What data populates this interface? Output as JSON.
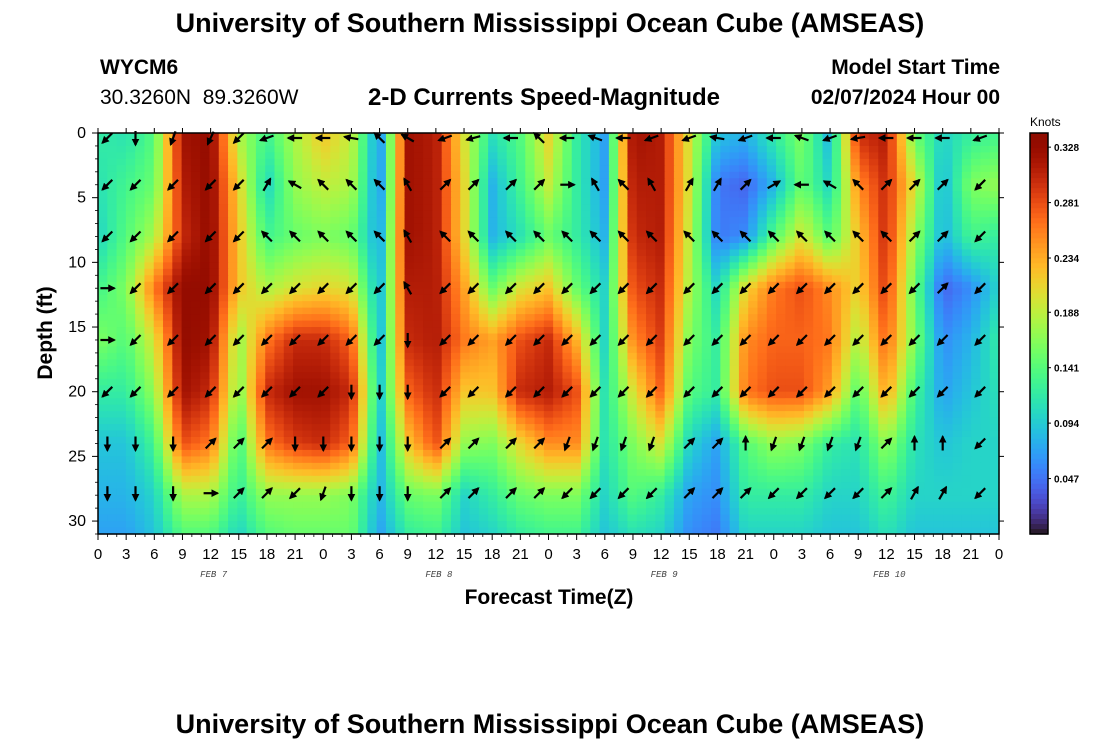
{
  "header": {
    "title": "University of Southern Mississippi Ocean Cube (AMSEAS)",
    "station_id": "WYCM6",
    "station_coords": "30.3260N  89.3260W",
    "product": "2-D Currents Speed-Magnitude",
    "model_start_label": "Model Start Time",
    "model_start_value": "02/07/2024 Hour 00"
  },
  "footer": {
    "title": "University of Southern Mississippi Ocean Cube (AMSEAS)"
  },
  "chart_data": {
    "type": "heatmap",
    "title": "2-D Currents Speed-Magnitude",
    "xlabel": "Forecast Time(Z)",
    "ylabel": "Depth (ft)",
    "xlim": [
      0,
      96
    ],
    "ylim": [
      31,
      0
    ],
    "x_ticks": [
      0,
      3,
      6,
      9,
      12,
      15,
      18,
      21,
      24,
      27,
      30,
      33,
      36,
      39,
      42,
      45,
      48,
      51,
      54,
      57,
      60,
      63,
      66,
      69,
      72,
      75,
      78,
      81,
      84,
      87,
      90,
      93,
      96
    ],
    "x_tick_labels": [
      "0",
      "3",
      "6",
      "9",
      "12",
      "15",
      "18",
      "21",
      "0",
      "3",
      "6",
      "9",
      "12",
      "15",
      "18",
      "21",
      "0",
      "3",
      "6",
      "9",
      "12",
      "15",
      "18",
      "21",
      "0",
      "3",
      "6",
      "9",
      "12",
      "15",
      "18",
      "21",
      "0"
    ],
    "y_ticks": [
      0,
      5,
      10,
      15,
      20,
      25,
      30
    ],
    "day_labels": [
      {
        "text": "FEB 7",
        "hour": 12
      },
      {
        "text": "FEB 8",
        "hour": 36
      },
      {
        "text": "FEB 9",
        "hour": 60
      },
      {
        "text": "FEB 10",
        "hour": 84
      }
    ],
    "colorbar": {
      "unit": "Knots",
      "min": 0.0,
      "max": 0.34,
      "ticks": [
        0.328,
        0.281,
        0.234,
        0.188,
        0.141,
        0.094,
        0.047
      ],
      "tick_labels": [
        "0.328",
        "0.281",
        "0.234",
        "0.188",
        "0.141",
        "0.094",
        "0.047"
      ]
    },
    "speed_grid": {
      "hours": [
        0,
        3,
        6,
        9,
        12,
        15,
        18,
        21,
        24,
        27,
        30,
        33,
        36,
        39,
        42,
        45,
        48,
        51,
        54,
        57,
        60,
        63,
        66,
        69,
        72,
        75,
        78,
        81,
        84,
        87,
        90,
        93,
        96
      ],
      "depths": [
        0,
        4,
        8,
        12,
        16,
        20,
        24,
        28,
        31
      ],
      "values": [
        [
          0.12,
          0.11,
          0.14,
          0.32,
          0.33,
          0.18,
          0.13,
          0.18,
          0.22,
          0.19,
          0.06,
          0.32,
          0.31,
          0.2,
          0.11,
          0.14,
          0.21,
          0.12,
          0.07,
          0.32,
          0.31,
          0.2,
          0.09,
          0.08,
          0.12,
          0.16,
          0.08,
          0.3,
          0.31,
          0.15,
          0.1,
          0.12,
          0.13
        ],
        [
          0.11,
          0.13,
          0.15,
          0.31,
          0.33,
          0.21,
          0.1,
          0.17,
          0.19,
          0.18,
          0.06,
          0.32,
          0.31,
          0.21,
          0.08,
          0.13,
          0.19,
          0.12,
          0.07,
          0.31,
          0.31,
          0.2,
          0.05,
          0.04,
          0.08,
          0.15,
          0.1,
          0.25,
          0.3,
          0.2,
          0.08,
          0.16,
          0.17
        ],
        [
          0.1,
          0.14,
          0.18,
          0.3,
          0.33,
          0.22,
          0.13,
          0.15,
          0.16,
          0.15,
          0.07,
          0.32,
          0.31,
          0.21,
          0.08,
          0.11,
          0.15,
          0.12,
          0.08,
          0.3,
          0.31,
          0.19,
          0.05,
          0.06,
          0.14,
          0.2,
          0.14,
          0.22,
          0.3,
          0.17,
          0.08,
          0.13,
          0.12
        ],
        [
          0.13,
          0.16,
          0.26,
          0.33,
          0.33,
          0.22,
          0.18,
          0.2,
          0.21,
          0.2,
          0.08,
          0.31,
          0.31,
          0.24,
          0.15,
          0.2,
          0.22,
          0.15,
          0.1,
          0.28,
          0.3,
          0.18,
          0.1,
          0.21,
          0.26,
          0.28,
          0.25,
          0.21,
          0.29,
          0.15,
          0.04,
          0.06,
          0.1
        ],
        [
          0.16,
          0.14,
          0.2,
          0.33,
          0.32,
          0.17,
          0.26,
          0.3,
          0.3,
          0.27,
          0.08,
          0.3,
          0.31,
          0.26,
          0.24,
          0.28,
          0.3,
          0.23,
          0.1,
          0.25,
          0.29,
          0.16,
          0.12,
          0.25,
          0.27,
          0.27,
          0.26,
          0.18,
          0.27,
          0.16,
          0.06,
          0.08,
          0.12
        ],
        [
          0.12,
          0.12,
          0.17,
          0.32,
          0.3,
          0.16,
          0.3,
          0.32,
          0.32,
          0.3,
          0.09,
          0.27,
          0.3,
          0.22,
          0.22,
          0.3,
          0.31,
          0.28,
          0.11,
          0.2,
          0.27,
          0.14,
          0.12,
          0.26,
          0.28,
          0.28,
          0.24,
          0.14,
          0.24,
          0.13,
          0.07,
          0.09,
          0.11
        ],
        [
          0.09,
          0.09,
          0.13,
          0.28,
          0.26,
          0.13,
          0.26,
          0.29,
          0.3,
          0.27,
          0.08,
          0.22,
          0.28,
          0.17,
          0.16,
          0.21,
          0.25,
          0.25,
          0.11,
          0.16,
          0.2,
          0.1,
          0.07,
          0.14,
          0.17,
          0.16,
          0.12,
          0.11,
          0.17,
          0.11,
          0.09,
          0.1,
          0.1
        ],
        [
          0.08,
          0.08,
          0.1,
          0.18,
          0.18,
          0.12,
          0.17,
          0.17,
          0.17,
          0.16,
          0.08,
          0.15,
          0.16,
          0.1,
          0.12,
          0.15,
          0.16,
          0.16,
          0.1,
          0.14,
          0.12,
          0.07,
          0.06,
          0.12,
          0.12,
          0.12,
          0.1,
          0.1,
          0.13,
          0.1,
          0.1,
          0.1,
          0.1
        ],
        [
          0.07,
          0.07,
          0.09,
          0.14,
          0.14,
          0.1,
          0.14,
          0.15,
          0.15,
          0.15,
          0.07,
          0.12,
          0.13,
          0.09,
          0.1,
          0.12,
          0.13,
          0.13,
          0.09,
          0.11,
          0.1,
          0.06,
          0.05,
          0.1,
          0.1,
          0.1,
          0.09,
          0.09,
          0.11,
          0.09,
          0.09,
          0.09,
          0.09
        ]
      ]
    },
    "arrows": {
      "hours": [
        1,
        4,
        8,
        12,
        15,
        18,
        21,
        24,
        27,
        30,
        33,
        37,
        40,
        44,
        47,
        50,
        53,
        56,
        59,
        63,
        66,
        69,
        72,
        75,
        78,
        81,
        84,
        87,
        90,
        94
      ],
      "depths": [
        0,
        4,
        8,
        12,
        16,
        20,
        24,
        28
      ],
      "directions_deg": [
        [
          225,
          180,
          200,
          205,
          225,
          250,
          270,
          270,
          280,
          315,
          300,
          250,
          255,
          270,
          315,
          270,
          290,
          270,
          250,
          250,
          280,
          250,
          270,
          290,
          250,
          260,
          270,
          270,
          270,
          250
        ],
        [
          225,
          225,
          225,
          225,
          225,
          30,
          300,
          315,
          315,
          315,
          330,
          45,
          45,
          45,
          45,
          90,
          330,
          315,
          330,
          30,
          30,
          45,
          60,
          270,
          300,
          315,
          45,
          45,
          45,
          225
        ],
        [
          225,
          225,
          225,
          225,
          225,
          315,
          315,
          315,
          315,
          315,
          330,
          315,
          315,
          315,
          315,
          315,
          315,
          315,
          315,
          315,
          315,
          315,
          315,
          315,
          315,
          315,
          315,
          45,
          45,
          225
        ],
        [
          90,
          225,
          225,
          225,
          225,
          225,
          225,
          225,
          225,
          225,
          330,
          225,
          225,
          225,
          225,
          225,
          225,
          225,
          225,
          225,
          225,
          225,
          225,
          225,
          225,
          225,
          225,
          225,
          45,
          225
        ],
        [
          90,
          225,
          225,
          225,
          225,
          225,
          225,
          225,
          225,
          225,
          180,
          225,
          225,
          225,
          225,
          225,
          225,
          225,
          225,
          225,
          225,
          225,
          225,
          225,
          225,
          225,
          225,
          225,
          225,
          225
        ],
        [
          225,
          225,
          225,
          225,
          225,
          225,
          225,
          225,
          180,
          180,
          180,
          225,
          225,
          225,
          225,
          225,
          225,
          225,
          225,
          225,
          225,
          225,
          225,
          225,
          225,
          225,
          225,
          225,
          225,
          225
        ],
        [
          180,
          180,
          180,
          45,
          45,
          45,
          180,
          180,
          180,
          180,
          180,
          45,
          45,
          45,
          45,
          200,
          200,
          200,
          200,
          45,
          45,
          0,
          200,
          200,
          200,
          200,
          45,
          0,
          0,
          225
        ],
        [
          180,
          180,
          180,
          90,
          45,
          45,
          225,
          200,
          180,
          180,
          180,
          45,
          45,
          45,
          45,
          225,
          225,
          225,
          225,
          45,
          45,
          45,
          225,
          225,
          225,
          225,
          45,
          30,
          30,
          225
        ]
      ]
    }
  }
}
